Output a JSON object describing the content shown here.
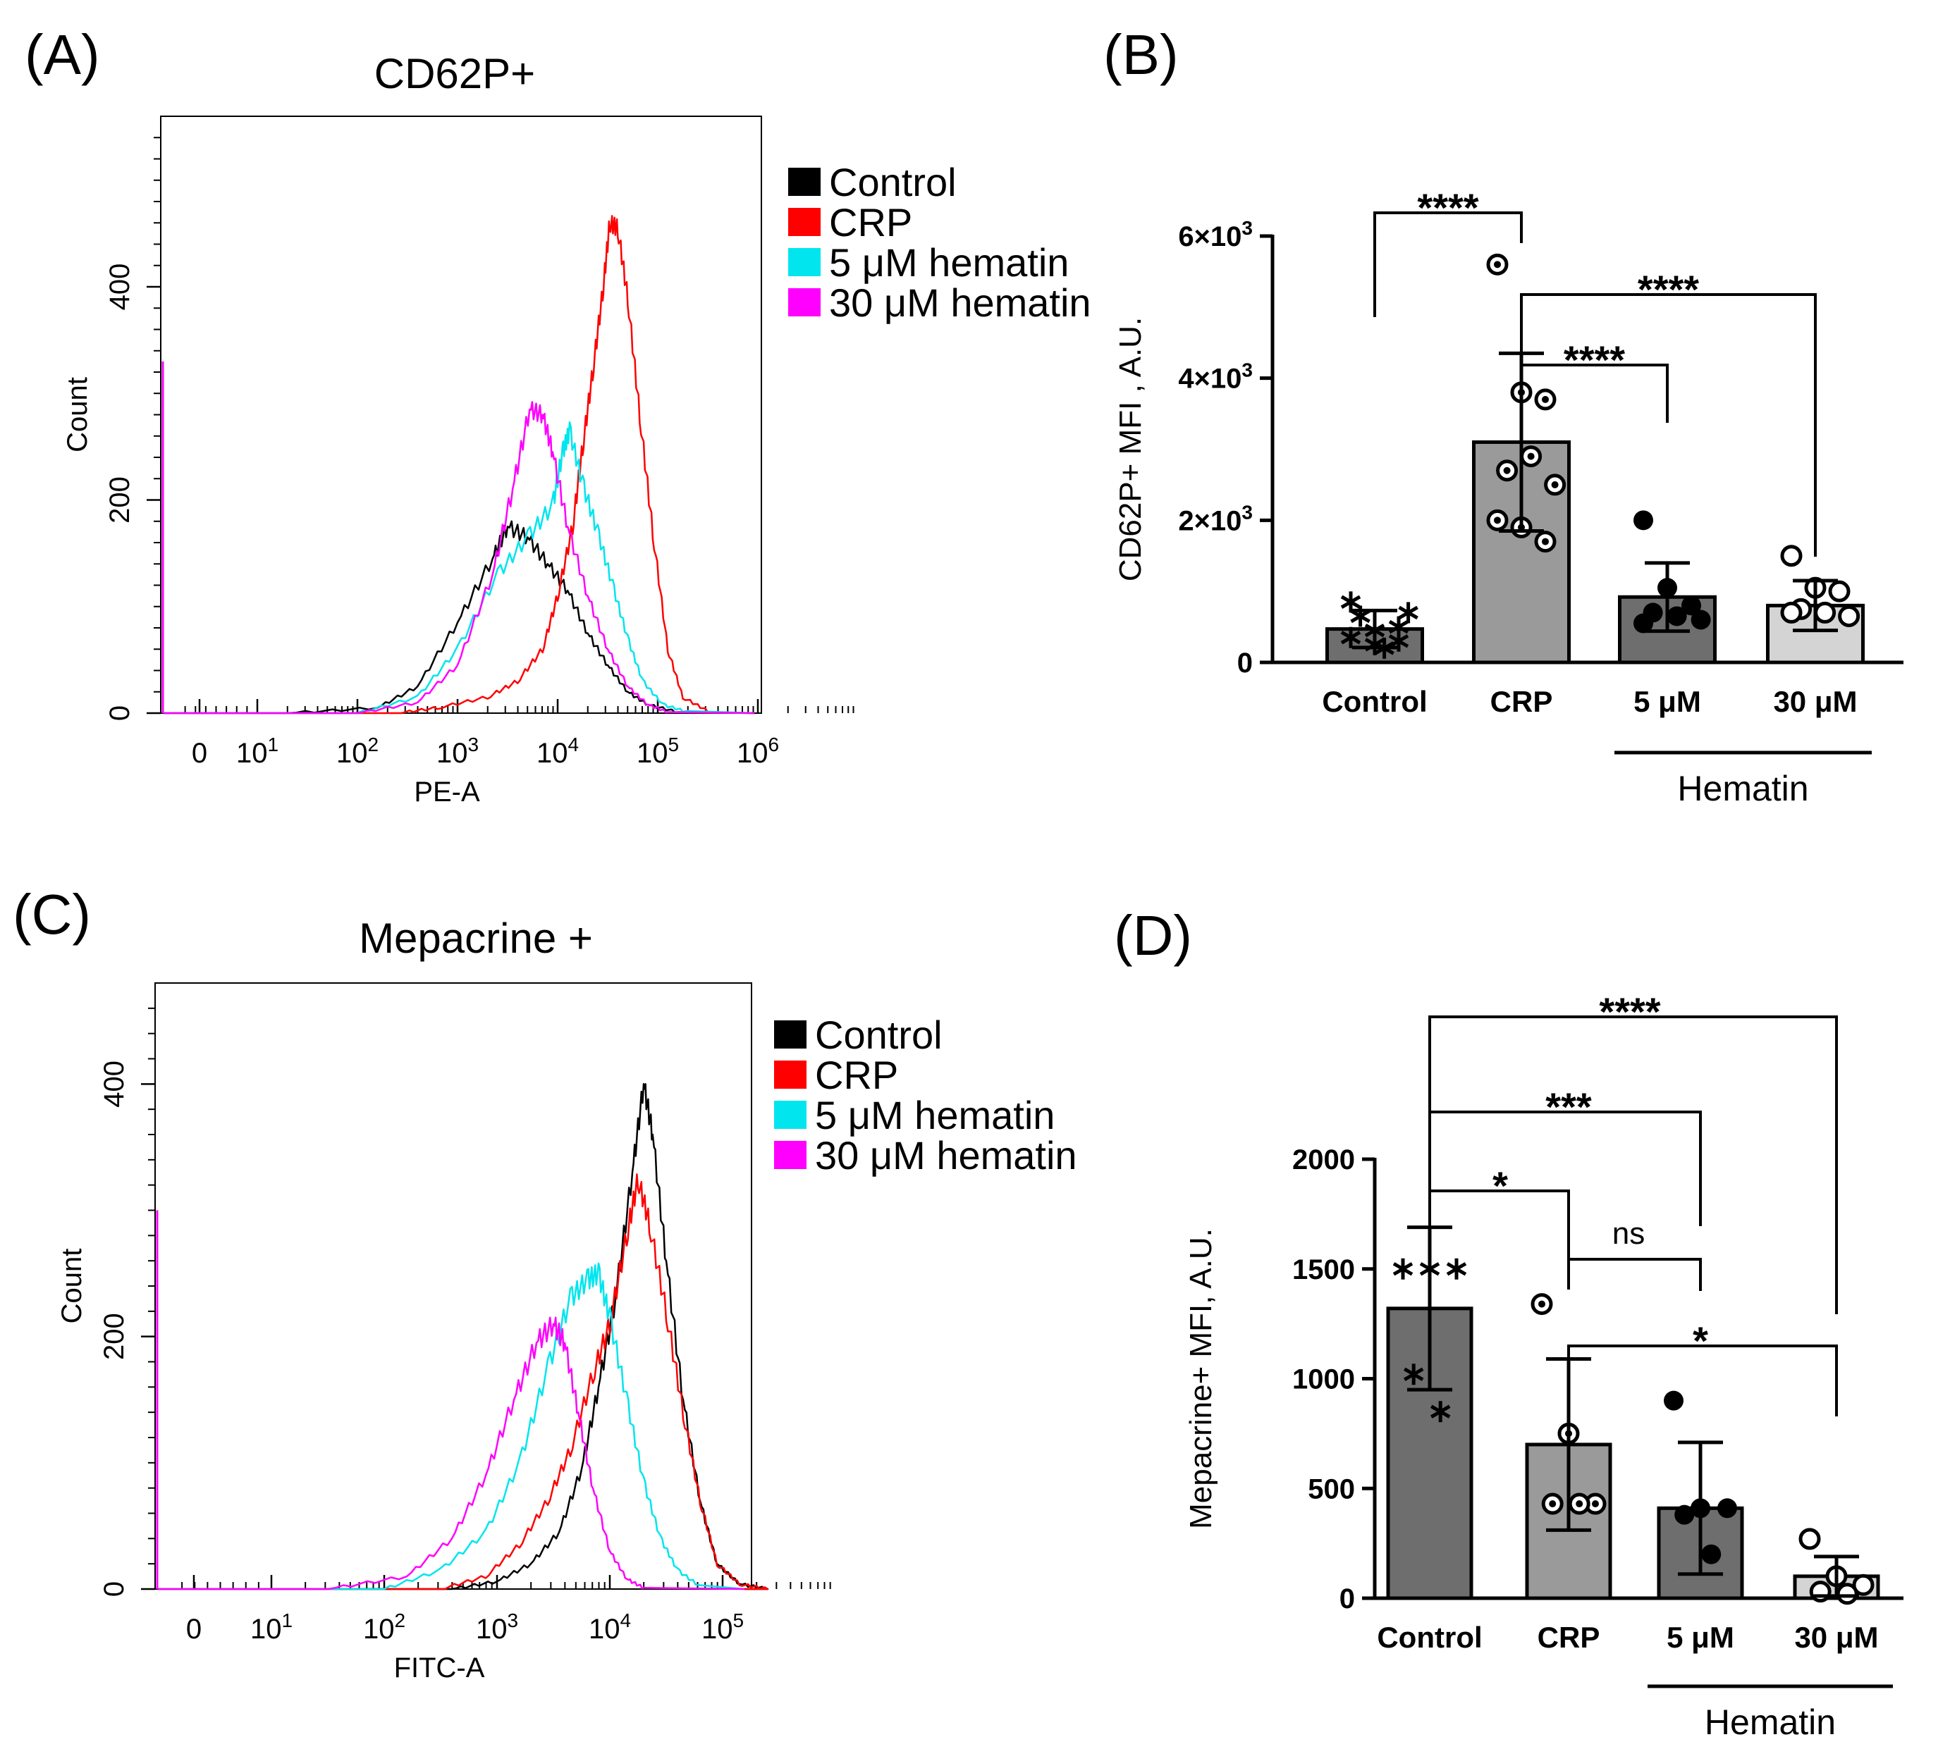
{
  "figure": {
    "panels": [
      {
        "key": "A",
        "label": "(A)"
      },
      {
        "key": "B",
        "label": "(B)"
      },
      {
        "key": "C",
        "label": "(C)"
      },
      {
        "key": "D",
        "label": "(D)"
      }
    ]
  },
  "colors": {
    "control": "#000000",
    "crp": "#ff0000",
    "hematin5": "#00e5ee",
    "hematin30": "#ff00ff",
    "bar_control": "#6e6e6e",
    "bar_crp": "#9a9a9a",
    "bar_5": "#6e6e6e",
    "bar_30": "#d4d4d4"
  },
  "chart_data": [
    {
      "panel": "A",
      "type": "line",
      "title": "CD62P+",
      "xlabel": "PE-A",
      "ylabel": "Count",
      "x_scale": "biexponential-log",
      "x_ticks": [
        {
          "value": 0,
          "label": "0",
          "exp": ""
        },
        {
          "value": 10,
          "label": "10",
          "exp": "1"
        },
        {
          "value": 100,
          "label": "10",
          "exp": "2"
        },
        {
          "value": 1000,
          "label": "10",
          "exp": "3"
        },
        {
          "value": 10000,
          "label": "10",
          "exp": "4"
        },
        {
          "value": 100000,
          "label": "10",
          "exp": "5"
        },
        {
          "value": 1000000,
          "label": "10",
          "exp": "6"
        }
      ],
      "y_ticks": [
        0,
        200,
        400
      ],
      "ylim": [
        0,
        560
      ],
      "legend": [
        "Control",
        "CRP",
        "5 μM hematin",
        "30 μM hematin"
      ],
      "series": [
        {
          "name": "Control",
          "color_key": "control",
          "points": [
            [
              0.3,
              0
            ],
            [
              1.2,
              5
            ],
            [
              1.6,
              25
            ],
            [
              2.0,
              85
            ],
            [
              2.35,
              145
            ],
            [
              2.5,
              175
            ],
            [
              2.7,
              165
            ],
            [
              2.9,
              140
            ],
            [
              3.1,
              115
            ],
            [
              3.3,
              75
            ],
            [
              3.5,
              45
            ],
            [
              3.7,
              20
            ],
            [
              3.9,
              8
            ],
            [
              4.2,
              1
            ]
          ]
        },
        {
          "name": "CRP",
          "color_key": "crp",
          "points": [
            [
              1.4,
              0
            ],
            [
              1.8,
              5
            ],
            [
              2.3,
              15
            ],
            [
              2.6,
              30
            ],
            [
              2.85,
              60
            ],
            [
              3.0,
              110
            ],
            [
              3.15,
              175
            ],
            [
              3.25,
              250
            ],
            [
              3.35,
              320
            ],
            [
              3.45,
              395
            ],
            [
              3.52,
              460
            ],
            [
              3.6,
              455
            ],
            [
              3.7,
              390
            ],
            [
              3.82,
              280
            ],
            [
              3.95,
              170
            ],
            [
              4.1,
              60
            ],
            [
              4.25,
              15
            ],
            [
              4.5,
              2
            ]
          ]
        },
        {
          "name": "5 μM hematin",
          "color_key": "hematin5",
          "points": [
            [
              1.0,
              0
            ],
            [
              1.6,
              15
            ],
            [
              2.0,
              60
            ],
            [
              2.4,
              130
            ],
            [
              2.7,
              165
            ],
            [
              2.95,
              195
            ],
            [
              3.05,
              245
            ],
            [
              3.12,
              265
            ],
            [
              3.25,
              215
            ],
            [
              3.4,
              170
            ],
            [
              3.55,
              120
            ],
            [
              3.7,
              70
            ],
            [
              3.85,
              30
            ],
            [
              4.05,
              8
            ],
            [
              4.3,
              1
            ]
          ]
        },
        {
          "name": "30 μM hematin",
          "color_key": "hematin30",
          "points": [
            [
              1.0,
              0
            ],
            [
              1.6,
              10
            ],
            [
              2.0,
              45
            ],
            [
              2.35,
              130
            ],
            [
              2.55,
              210
            ],
            [
              2.72,
              285
            ],
            [
              2.85,
              280
            ],
            [
              2.95,
              245
            ],
            [
              3.1,
              175
            ],
            [
              3.3,
              110
            ],
            [
              3.5,
              60
            ],
            [
              3.7,
              25
            ],
            [
              3.9,
              8
            ],
            [
              4.1,
              1
            ]
          ]
        }
      ]
    },
    {
      "panel": "B",
      "type": "bar",
      "ylabel": "CD62P+ MFI , A.U.",
      "ylim": [
        0,
        6000
      ],
      "y_ticks": [
        {
          "value": 0,
          "label": "0",
          "exp": ""
        },
        {
          "value": 2000,
          "label": "2×10",
          "exp": "3"
        },
        {
          "value": 4000,
          "label": "4×10",
          "exp": "3"
        },
        {
          "value": 6000,
          "label": "6×10",
          "exp": "3"
        }
      ],
      "categories": [
        "Control",
        "CRP",
        "5 μM",
        "30 μM"
      ],
      "group_label": "Hematin",
      "group_members": [
        "5 μM",
        "30 μM"
      ],
      "values": [
        470,
        3100,
        920,
        800
      ],
      "errors": [
        260,
        1250,
        480,
        350
      ],
      "marker_styles": [
        "asterisk",
        "dot-ring",
        "filled",
        "open"
      ],
      "points": [
        [
          850,
          450,
          300,
          650,
          200,
          700,
          350,
          250,
          500
        ],
        [
          5600,
          3800,
          3700,
          2700,
          2900,
          2500,
          2000,
          1900,
          1700
        ],
        [
          2000,
          1050,
          800,
          700,
          650,
          600,
          550
        ],
        [
          1500,
          1050,
          1000,
          750,
          700,
          650,
          700
        ]
      ],
      "significance": [
        {
          "from": 0,
          "to": 1,
          "label": "****"
        },
        {
          "from": 1,
          "to": 2,
          "label": "****"
        },
        {
          "from": 1,
          "to": 3,
          "label": "****"
        }
      ]
    },
    {
      "panel": "C",
      "type": "line",
      "title": "Mepacrine +",
      "xlabel": "FITC-A",
      "ylabel": "Count",
      "x_scale": "biexponential-log",
      "x_ticks": [
        {
          "value": 0,
          "label": "0",
          "exp": ""
        },
        {
          "value": 10,
          "label": "10",
          "exp": "1"
        },
        {
          "value": 100,
          "label": "10",
          "exp": "2"
        },
        {
          "value": 1000,
          "label": "10",
          "exp": "3"
        },
        {
          "value": 10000,
          "label": "10",
          "exp": "4"
        },
        {
          "value": 100000,
          "label": "10",
          "exp": "5"
        }
      ],
      "y_ticks": [
        0,
        200,
        400
      ],
      "ylim": [
        0,
        480
      ],
      "legend": [
        "Control",
        "CRP",
        "5 μM hematin",
        "30 μM hematin"
      ],
      "series": [
        {
          "name": "Control",
          "color_key": "control",
          "points": [
            [
              1.6,
              0
            ],
            [
              2.0,
              6
            ],
            [
              2.3,
              20
            ],
            [
              2.55,
              45
            ],
            [
              2.75,
              95
            ],
            [
              2.9,
              160
            ],
            [
              3.05,
              230
            ],
            [
              3.2,
              330
            ],
            [
              3.3,
              400
            ],
            [
              3.38,
              360
            ],
            [
              3.5,
              260
            ],
            [
              3.65,
              150
            ],
            [
              3.8,
              70
            ],
            [
              3.95,
              20
            ],
            [
              4.15,
              4
            ],
            [
              4.4,
              0
            ]
          ]
        },
        {
          "name": "CRP",
          "color_key": "crp",
          "points": [
            [
              1.5,
              0
            ],
            [
              1.9,
              10
            ],
            [
              2.2,
              35
            ],
            [
              2.45,
              70
            ],
            [
              2.65,
              110
            ],
            [
              2.85,
              170
            ],
            [
              3.0,
              210
            ],
            [
              3.15,
              280
            ],
            [
              3.25,
              325
            ],
            [
              3.35,
              290
            ],
            [
              3.5,
              220
            ],
            [
              3.65,
              140
            ],
            [
              3.8,
              70
            ],
            [
              3.95,
              20
            ],
            [
              4.15,
              4
            ],
            [
              4.4,
              0
            ]
          ]
        },
        {
          "name": "5 μM hematin",
          "color_key": "hematin5",
          "points": [
            [
              1.0,
              0
            ],
            [
              1.5,
              15
            ],
            [
              1.9,
              45
            ],
            [
              2.2,
              100
            ],
            [
              2.45,
              175
            ],
            [
              2.65,
              230
            ],
            [
              2.8,
              245
            ],
            [
              2.9,
              250
            ],
            [
              3.0,
              215
            ],
            [
              3.15,
              150
            ],
            [
              3.3,
              85
            ],
            [
              3.45,
              40
            ],
            [
              3.6,
              15
            ],
            [
              3.8,
              2
            ]
          ]
        },
        {
          "name": "30 μM hematin",
          "color_key": "hematin30",
          "points": [
            [
              0.5,
              0
            ],
            [
              1.2,
              10
            ],
            [
              1.6,
              40
            ],
            [
              1.9,
              90
            ],
            [
              2.15,
              150
            ],
            [
              2.35,
              195
            ],
            [
              2.5,
              210
            ],
            [
              2.6,
              195
            ],
            [
              2.72,
              140
            ],
            [
              2.85,
              80
            ],
            [
              3.0,
              30
            ],
            [
              3.15,
              8
            ],
            [
              3.3,
              1
            ]
          ]
        }
      ]
    },
    {
      "panel": "D",
      "type": "bar",
      "ylabel": "Mepacrine+ MFI, A.U.",
      "ylim": [
        0,
        2000
      ],
      "y_ticks": [
        {
          "value": 0,
          "label": "0",
          "exp": ""
        },
        {
          "value": 500,
          "label": "500",
          "exp": ""
        },
        {
          "value": 1000,
          "label": "1000",
          "exp": ""
        },
        {
          "value": 1500,
          "label": "1500",
          "exp": ""
        },
        {
          "value": 2000,
          "label": "2000",
          "exp": ""
        }
      ],
      "categories": [
        "Control",
        "CRP",
        "5 μM",
        "30 μM"
      ],
      "group_label": "Hematin",
      "group_members": [
        "5 μM",
        "30 μM"
      ],
      "values": [
        1320,
        700,
        410,
        100
      ],
      "errors": [
        370,
        390,
        300,
        90
      ],
      "marker_styles": [
        "asterisk",
        "dot-ring",
        "filled",
        "open"
      ],
      "points": [
        [
          1500,
          1500,
          1500,
          1020,
          850
        ],
        [
          1340,
          750,
          430,
          430,
          430
        ],
        [
          900,
          410,
          410,
          380,
          200
        ],
        [
          270,
          100,
          60,
          30,
          20
        ]
      ],
      "significance": [
        {
          "from": 0,
          "to": 1,
          "label": "*"
        },
        {
          "from": 1,
          "to": 2,
          "label": "ns"
        },
        {
          "from": 1,
          "to": 3,
          "label": "*"
        },
        {
          "from": 0,
          "to": 2,
          "label": "***"
        },
        {
          "from": 0,
          "to": 3,
          "label": "****"
        }
      ]
    }
  ]
}
